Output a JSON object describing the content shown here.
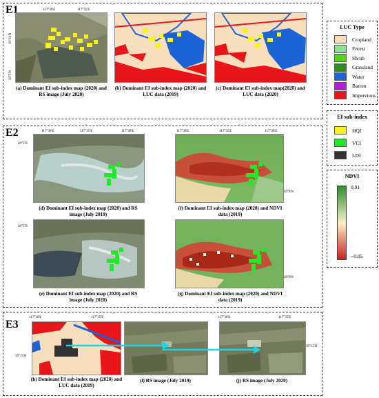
{
  "sections": [
    {
      "label": "E1"
    },
    {
      "label": "E2"
    },
    {
      "label": "E3"
    }
  ],
  "captions": {
    "a": "(a)  Dominant EI sub-index map (2020) and RS image (July 2020)",
    "b": "(b)  Dominant EI sub-index map (2020) and LUC data (2019)",
    "c": "(c)  Dominant EI sub-index map(2020) and LUC data (2020)",
    "d": "(d)  Dominant EI sub-index map (2020) and RS image (July 2019)",
    "e": "(e)  Dominant EI sub-index map (2020) and RS image (July 2020)",
    "f": "(f)  Dominant EI sub-index map (2020) and NDVI data (2019)",
    "g": "(g)  Dominant EI sub-index map (2020) and NDVI data (2019)",
    "h": "(h)  Dominant EI sub-index map (2020) and LUC data (2019)",
    "i": "(i) RS image (July 2019)",
    "j": "(j) RS image (July 2020)"
  },
  "ticks": {
    "e1_top": [
      "117°30'E",
      "117°35'E"
    ],
    "e1_left": [
      "39°10'N",
      "39°5'N"
    ],
    "e2_d_top": [
      "117°30'E",
      "117°35'E",
      "117°40'E"
    ],
    "e2_d_left": "40°5'N",
    "e2_f_top": [
      "117°30'E",
      "117°35'E",
      "117°40'E"
    ],
    "e2_f_right": "40°0'N",
    "e3_top_left": [
      "117°30'E",
      "117°35'E"
    ],
    "e3_left": "39°15'N",
    "e3_top_right": [
      "117°30'E",
      "117°35'E"
    ],
    "e3_right": "39°15'N"
  },
  "luc_legend": {
    "title": "LUC Type",
    "items": [
      {
        "label": "Cropland",
        "color": "#f7dfbe"
      },
      {
        "label": "Forest",
        "color": "#8fe08f"
      },
      {
        "label": "Shrub",
        "color": "#54d41e"
      },
      {
        "label": "Grassland",
        "color": "#2f8f1e"
      },
      {
        "label": "Water",
        "color": "#1c63d6"
      },
      {
        "label": "Barren",
        "color": "#b21fd8"
      },
      {
        "label": "Impervious",
        "color": "#e8161b"
      }
    ]
  },
  "ei_legend": {
    "title": "EI sub-index",
    "items": [
      {
        "label": "HQI",
        "color": "#f5f21c"
      },
      {
        "label": "VCI",
        "color": "#22e82a"
      },
      {
        "label": "LDI",
        "color": "#333333"
      }
    ]
  },
  "ndvi_legend": {
    "title": "NDVI",
    "max": "0.91",
    "min": "−0.05",
    "color_high": "#2e8b2e",
    "color_mid": "#f7efc8",
    "color_low": "#c8231f"
  }
}
